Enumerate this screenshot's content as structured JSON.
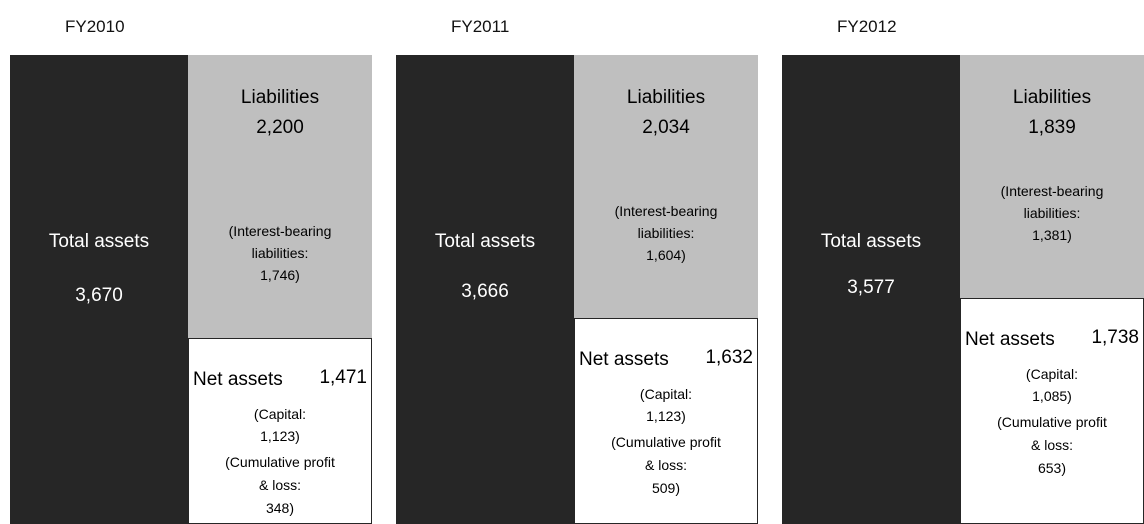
{
  "panels": [
    {
      "title": "FY2010",
      "total_assets_label": "Total assets",
      "total_assets": "3,670",
      "liabilities_label": "Liabilities",
      "liabilities": "2,200",
      "interest_bearing": [
        "(Interest-bearing",
        "liabilities:",
        "1,746)"
      ],
      "net_assets_label": "Net assets",
      "net_assets": "1,471",
      "capital": [
        "(Capital:",
        "1,123)"
      ],
      "cumulative": [
        "(Cumulative profit",
        "& loss:",
        "348)"
      ]
    },
    {
      "title": "FY2011",
      "total_assets_label": "Total assets",
      "total_assets": "3,666",
      "liabilities_label": "Liabilities",
      "liabilities": "2,034",
      "interest_bearing": [
        "(Interest-bearing",
        "liabilities:",
        "1,604)"
      ],
      "net_assets_label": "Net assets",
      "net_assets": "1,632",
      "capital": [
        "(Capital:",
        "1,123)"
      ],
      "cumulative": [
        "(Cumulative profit",
        "& loss:",
        "509)"
      ]
    },
    {
      "title": "FY2012",
      "total_assets_label": "Total assets",
      "total_assets": "3,577",
      "liabilities_label": "Liabilities",
      "liabilities": "1,839",
      "interest_bearing": [
        "(Interest-bearing",
        "liabilities:",
        "1,381)"
      ],
      "net_assets_label": "Net assets",
      "net_assets": "1,738",
      "capital": [
        "(Capital:",
        "1,085)"
      ],
      "cumulative": [
        "(Cumulative profit",
        "& loss:",
        "653)"
      ]
    }
  ]
}
